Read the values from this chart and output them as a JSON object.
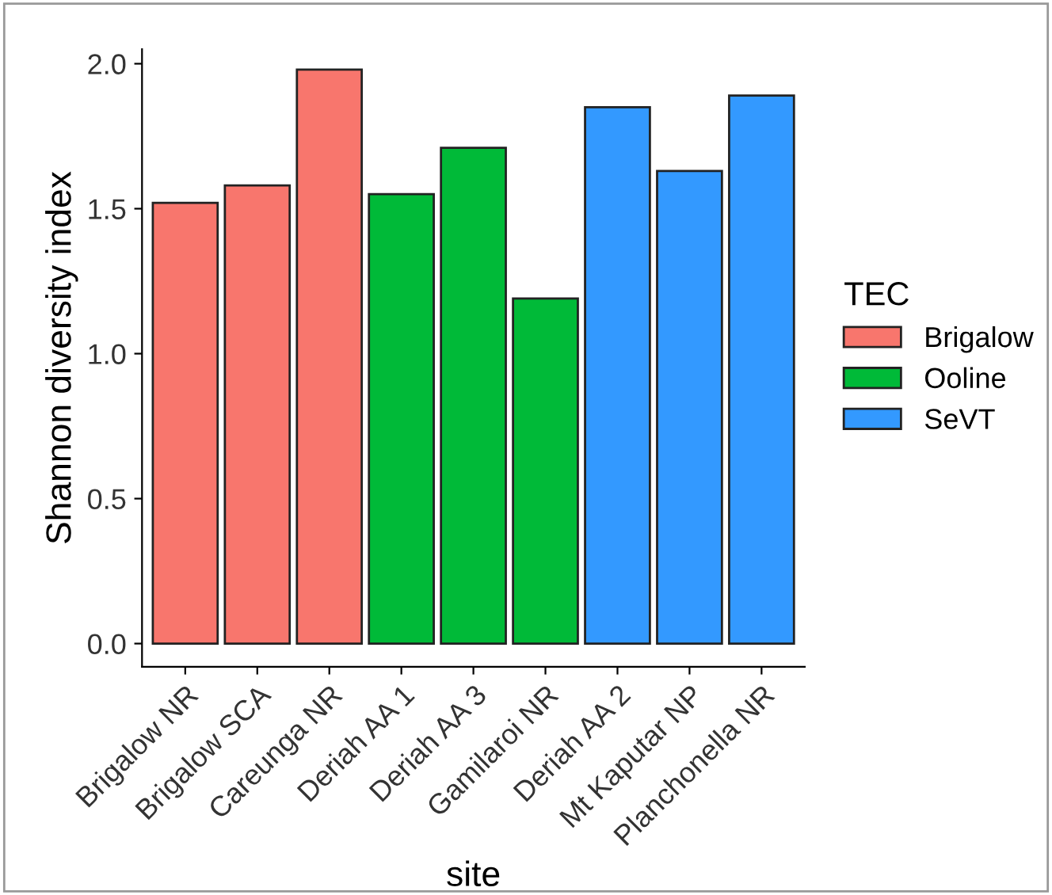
{
  "chart_data": {
    "type": "bar",
    "xlabel": "site",
    "ylabel": "Shannon diversity index",
    "legend_title": "TEC",
    "legend": "right",
    "categories": [
      "Brigalow NR",
      "Brigalow SCA",
      "Careunga NR",
      "Deriah AA 1",
      "Deriah AA 3",
      "Gamilaroi NR",
      "Deriah AA 2",
      "Mt Kaputar NP",
      "Planchonella NR"
    ],
    "series": [
      {
        "name": "Brigalow",
        "color": "#f8766d",
        "values": [
          1.52,
          1.58,
          1.98,
          null,
          null,
          null,
          null,
          null,
          null
        ]
      },
      {
        "name": "Ooline",
        "color": "#00ba38",
        "values": [
          null,
          null,
          null,
          1.55,
          1.71,
          1.19,
          null,
          null,
          null
        ]
      },
      {
        "name": "SeVT",
        "color": "#3399ff",
        "values": [
          null,
          null,
          null,
          null,
          null,
          null,
          1.85,
          1.63,
          1.89
        ]
      }
    ],
    "ylim": [
      -0.08,
      2.05
    ],
    "yticks": [
      {
        "value": 0,
        "label": "0.0"
      },
      0.5,
      {
        "value": 1,
        "label": "1.0"
      },
      1.5,
      {
        "value": 2,
        "label": "2.0"
      }
    ],
    "grid": false
  }
}
